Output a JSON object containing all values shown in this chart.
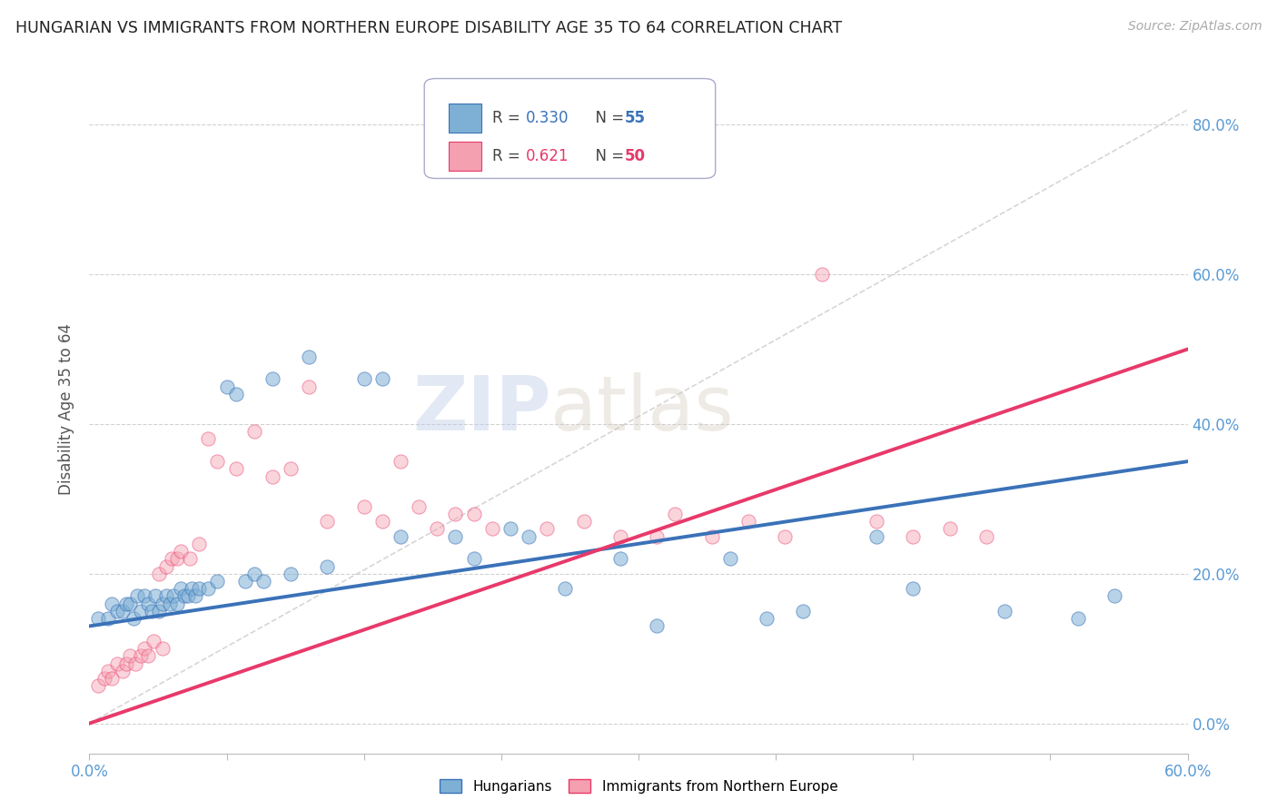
{
  "title": "HUNGARIAN VS IMMIGRANTS FROM NORTHERN EUROPE DISABILITY AGE 35 TO 64 CORRELATION CHART",
  "source": "Source: ZipAtlas.com",
  "ylabel": "Disability Age 35 to 64",
  "xmin": 0.0,
  "xmax": 0.6,
  "ymin": -0.04,
  "ymax": 0.88,
  "blue_R": "0.330",
  "blue_N": "55",
  "pink_R": "0.621",
  "pink_N": "50",
  "blue_color": "#7EB0D5",
  "pink_color": "#F4A0B0",
  "blue_line_color": "#3A72B8",
  "pink_line_color": "#E8396A",
  "ref_line_color": "#CCCCCC",
  "watermark_zip": "ZIP",
  "watermark_atlas": "atlas",
  "blue_trend_start": 0.13,
  "blue_trend_end": 0.35,
  "pink_trend_start": 0.0,
  "pink_trend_end": 0.5,
  "blue_scatter_x": [
    0.005,
    0.01,
    0.012,
    0.015,
    0.018,
    0.02,
    0.022,
    0.024,
    0.026,
    0.028,
    0.03,
    0.032,
    0.034,
    0.036,
    0.038,
    0.04,
    0.042,
    0.044,
    0.046,
    0.048,
    0.05,
    0.052,
    0.054,
    0.056,
    0.058,
    0.06,
    0.065,
    0.07,
    0.075,
    0.08,
    0.085,
    0.09,
    0.095,
    0.1,
    0.11,
    0.12,
    0.13,
    0.15,
    0.16,
    0.17,
    0.2,
    0.21,
    0.23,
    0.24,
    0.26,
    0.29,
    0.31,
    0.35,
    0.37,
    0.39,
    0.43,
    0.45,
    0.5,
    0.54,
    0.56
  ],
  "blue_scatter_y": [
    0.14,
    0.14,
    0.16,
    0.15,
    0.15,
    0.16,
    0.16,
    0.14,
    0.17,
    0.15,
    0.17,
    0.16,
    0.15,
    0.17,
    0.15,
    0.16,
    0.17,
    0.16,
    0.17,
    0.16,
    0.18,
    0.17,
    0.17,
    0.18,
    0.17,
    0.18,
    0.18,
    0.19,
    0.45,
    0.44,
    0.19,
    0.2,
    0.19,
    0.46,
    0.2,
    0.49,
    0.21,
    0.46,
    0.46,
    0.25,
    0.25,
    0.22,
    0.26,
    0.25,
    0.18,
    0.22,
    0.13,
    0.22,
    0.14,
    0.15,
    0.25,
    0.18,
    0.15,
    0.14,
    0.17
  ],
  "pink_scatter_x": [
    0.005,
    0.008,
    0.01,
    0.012,
    0.015,
    0.018,
    0.02,
    0.022,
    0.025,
    0.028,
    0.03,
    0.032,
    0.035,
    0.038,
    0.04,
    0.042,
    0.045,
    0.048,
    0.05,
    0.055,
    0.06,
    0.065,
    0.07,
    0.08,
    0.09,
    0.1,
    0.11,
    0.12,
    0.13,
    0.15,
    0.16,
    0.17,
    0.18,
    0.19,
    0.2,
    0.21,
    0.22,
    0.25,
    0.27,
    0.29,
    0.31,
    0.32,
    0.34,
    0.36,
    0.38,
    0.4,
    0.43,
    0.45,
    0.47,
    0.49
  ],
  "pink_scatter_y": [
    0.05,
    0.06,
    0.07,
    0.06,
    0.08,
    0.07,
    0.08,
    0.09,
    0.08,
    0.09,
    0.1,
    0.09,
    0.11,
    0.2,
    0.1,
    0.21,
    0.22,
    0.22,
    0.23,
    0.22,
    0.24,
    0.38,
    0.35,
    0.34,
    0.39,
    0.33,
    0.34,
    0.45,
    0.27,
    0.29,
    0.27,
    0.35,
    0.29,
    0.26,
    0.28,
    0.28,
    0.26,
    0.26,
    0.27,
    0.25,
    0.25,
    0.28,
    0.25,
    0.27,
    0.25,
    0.6,
    0.27,
    0.25,
    0.26,
    0.25
  ],
  "ytick_labels": [
    "0.0%",
    "20.0%",
    "40.0%",
    "60.0%",
    "80.0%"
  ],
  "ytick_vals": [
    0.0,
    0.2,
    0.4,
    0.6,
    0.8
  ],
  "xtick_vals": [
    0.0,
    0.075,
    0.15,
    0.225,
    0.3,
    0.375,
    0.45,
    0.525,
    0.6
  ],
  "grid_color": "#CCCCCC",
  "bg_color": "#FFFFFF",
  "title_color": "#222222",
  "axis_label_color": "#555555",
  "tick_label_color": "#5B9BD5"
}
